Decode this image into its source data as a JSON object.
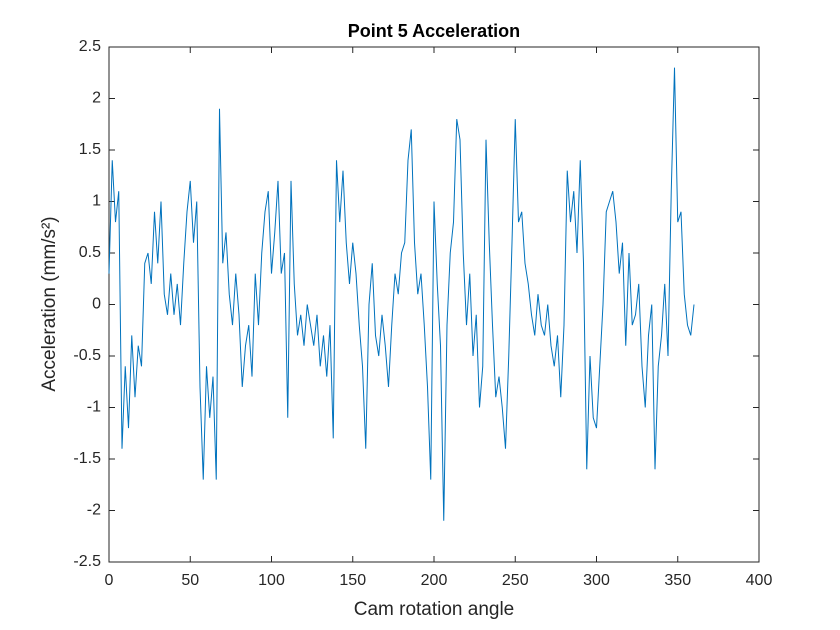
{
  "chart_data": {
    "type": "line",
    "title": "Point 5 Acceleration",
    "x_label": "Cam rotation angle",
    "y_label": "Acceleration (mm/s²)",
    "x": [
      0,
      2,
      4,
      6,
      8,
      10,
      12,
      14,
      16,
      18,
      20,
      22,
      24,
      26,
      28,
      30,
      32,
      34,
      36,
      38,
      40,
      42,
      44,
      46,
      48,
      50,
      52,
      54,
      56,
      58,
      60,
      62,
      64,
      66,
      68,
      70,
      72,
      74,
      76,
      78,
      80,
      82,
      84,
      86,
      88,
      90,
      92,
      94,
      96,
      98,
      100,
      102,
      104,
      106,
      108,
      110,
      112,
      114,
      116,
      118,
      120,
      122,
      124,
      126,
      128,
      130,
      132,
      134,
      136,
      138,
      140,
      142,
      144,
      146,
      148,
      150,
      152,
      154,
      156,
      158,
      160,
      162,
      164,
      166,
      168,
      170,
      172,
      174,
      176,
      178,
      180,
      182,
      184,
      186,
      188,
      190,
      192,
      194,
      196,
      198,
      200,
      202,
      204,
      206,
      208,
      210,
      212,
      214,
      216,
      218,
      220,
      222,
      224,
      226,
      228,
      230,
      232,
      234,
      236,
      238,
      240,
      242,
      244,
      246,
      248,
      250,
      252,
      254,
      256,
      258,
      260,
      262,
      264,
      266,
      268,
      270,
      272,
      274,
      276,
      278,
      280,
      282,
      284,
      286,
      288,
      290,
      292,
      294,
      296,
      298,
      300,
      302,
      304,
      306,
      308,
      310,
      312,
      314,
      316,
      318,
      320,
      322,
      324,
      326,
      328,
      330,
      332,
      334,
      336,
      338,
      340,
      342,
      344,
      346,
      348,
      350,
      352,
      354,
      356,
      358,
      360
    ],
    "series": [
      {
        "name": "Point 5",
        "color": "#0072bd",
        "values": [
          0.3,
          1.4,
          0.8,
          1.1,
          -1.4,
          -0.6,
          -1.2,
          -0.3,
          -0.9,
          -0.4,
          -0.6,
          0.4,
          0.5,
          0.2,
          0.9,
          0.4,
          1.0,
          0.1,
          -0.1,
          0.3,
          -0.1,
          0.2,
          -0.2,
          0.4,
          0.9,
          1.2,
          0.6,
          1.0,
          -0.8,
          -1.7,
          -0.6,
          -1.1,
          -0.7,
          -1.7,
          1.9,
          0.4,
          0.7,
          0.1,
          -0.2,
          0.3,
          -0.1,
          -0.8,
          -0.4,
          -0.2,
          -0.7,
          0.3,
          -0.2,
          0.5,
          0.9,
          1.1,
          0.3,
          0.7,
          1.2,
          0.3,
          0.5,
          -1.1,
          1.2,
          0.2,
          -0.3,
          -0.1,
          -0.4,
          0.0,
          -0.2,
          -0.4,
          -0.1,
          -0.6,
          -0.3,
          -0.7,
          -0.2,
          -1.3,
          1.4,
          0.8,
          1.3,
          0.6,
          0.2,
          0.6,
          0.3,
          -0.2,
          -0.6,
          -1.4,
          0.0,
          0.4,
          -0.3,
          -0.5,
          -0.1,
          -0.4,
          -0.8,
          -0.2,
          0.3,
          0.1,
          0.5,
          0.6,
          1.4,
          1.7,
          0.6,
          0.1,
          0.3,
          -0.2,
          -0.8,
          -1.7,
          1.0,
          0.2,
          -0.4,
          -2.1,
          -0.2,
          0.5,
          0.8,
          1.8,
          1.6,
          0.5,
          -0.2,
          0.3,
          -0.5,
          -0.1,
          -1.0,
          -0.6,
          1.6,
          0.6,
          -0.2,
          -0.9,
          -0.7,
          -1.0,
          -1.4,
          -0.5,
          0.6,
          1.8,
          0.8,
          0.9,
          0.4,
          0.2,
          -0.1,
          -0.3,
          0.1,
          -0.2,
          -0.3,
          0.0,
          -0.4,
          -0.6,
          -0.3,
          -0.9,
          -0.2,
          1.3,
          0.8,
          1.1,
          0.5,
          1.4,
          0.4,
          -1.6,
          -0.5,
          -1.1,
          -1.2,
          -0.6,
          0.0,
          0.9,
          1.0,
          1.1,
          0.8,
          0.3,
          0.6,
          -0.4,
          0.5,
          -0.2,
          -0.1,
          0.2,
          -0.6,
          -1.0,
          -0.3,
          0.0,
          -1.6,
          -0.6,
          -0.3,
          0.2,
          -0.5,
          1.1,
          2.3,
          0.8,
          0.9,
          0.1,
          -0.2,
          -0.3,
          0.0
        ]
      }
    ],
    "xlim": [
      0,
      400
    ],
    "xticks": [
      0,
      50,
      100,
      150,
      200,
      250,
      300,
      350,
      400
    ],
    "ylim": [
      -2.5,
      2.5
    ],
    "yticks": [
      -2.5,
      -2,
      -1.5,
      -1,
      -0.5,
      0,
      0.5,
      1,
      1.5,
      2,
      2.5
    ]
  }
}
